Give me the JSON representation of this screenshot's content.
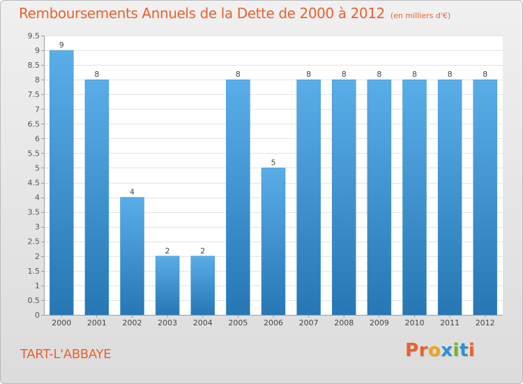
{
  "header": {
    "title": "Remboursements Annuels de la Dette de 2000 à 2012",
    "unit": "(en milliers d'€)"
  },
  "footer": {
    "commune": "TART-L'ABBAYE",
    "logo_text": "Proxiti"
  },
  "colors": {
    "title": "#e9612e",
    "bar_top": "#5aaee8",
    "bar_bottom": "#2677b4",
    "logo_letters": [
      "#e9612e",
      "#e9612e",
      "#f2a11f",
      "#2a90d8",
      "#6fb52c",
      "#2a90d8",
      "#e9612e"
    ]
  },
  "chart_data": {
    "type": "bar",
    "title": "Remboursements Annuels de la Dette de 2000 à 2012",
    "xlabel": "",
    "ylabel": "",
    "categories": [
      "2000",
      "2001",
      "2002",
      "2003",
      "2004",
      "2005",
      "2006",
      "2007",
      "2008",
      "2009",
      "2010",
      "2011",
      "2012"
    ],
    "values": [
      9,
      8,
      4,
      2,
      2,
      8,
      5,
      8,
      8,
      8,
      8,
      8,
      8
    ],
    "data_labels": [
      "9",
      "8",
      "4",
      "2",
      "2",
      "8",
      "5",
      "8",
      "8",
      "8",
      "8",
      "8",
      "8"
    ],
    "ylim": [
      0,
      9.5
    ],
    "yticks": [
      0,
      0.5,
      1,
      1.5,
      2,
      2.5,
      3,
      3.5,
      4,
      4.5,
      5,
      5.5,
      6,
      6.5,
      7,
      7.5,
      8,
      8.5,
      9,
      9.5
    ],
    "ytick_labels": [
      "0",
      "0.5",
      "1",
      "1.5",
      "2",
      "2.5",
      "3",
      "3.5",
      "4",
      "4.5",
      "5",
      "5.5",
      "6",
      "6.5",
      "7",
      "7.5",
      "8",
      "8.5",
      "9",
      "9.5"
    ],
    "grid": true,
    "legend": "none"
  }
}
